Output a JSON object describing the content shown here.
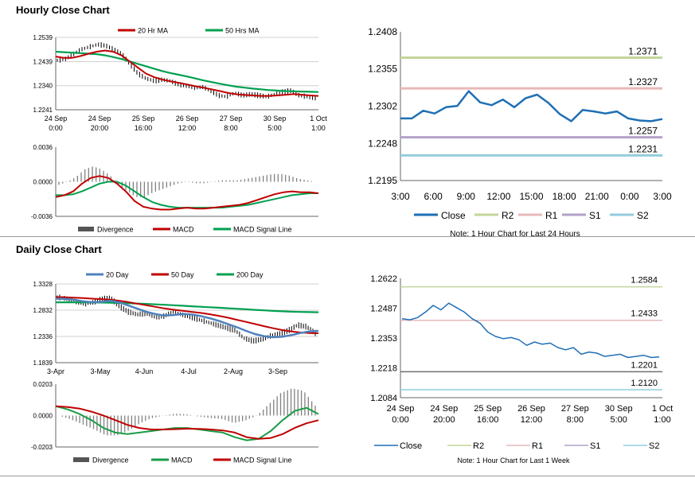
{
  "sections": {
    "hourly_title": "Hourly Close Chart",
    "daily_title": "Daily Close Chart"
  },
  "colors": {
    "close": "#1f6fb5",
    "r2": "#c3d69b",
    "r1": "#e6b9b8",
    "s1": "#b3a2c7",
    "s2": "#93cddd",
    "red": "#c00000",
    "green": "#00a050",
    "blue": "#4f81bd",
    "bar": "#808080",
    "macd_daily_green": "#1a9b45"
  },
  "chart_data": [
    {
      "id": "hourly_price",
      "type": "line",
      "title": "Hourly Close Chart",
      "legend": [
        "20 Hr MA",
        "50 Hrs MA"
      ],
      "y_ticks": [
        "1.2539",
        "1.2439",
        "1.2340",
        "1.2241"
      ],
      "ylim": [
        1.2241,
        1.2539
      ],
      "x_ticks": [
        [
          "24 Sep",
          "0:00"
        ],
        [
          "24 Sep",
          "20:00"
        ],
        [
          "25 Sep",
          "16:00"
        ],
        [
          "26 Sep",
          "12:00"
        ],
        [
          "27 Sep",
          "8:00"
        ],
        [
          "30 Sep",
          "5:00"
        ],
        [
          "1 Oct",
          "1:00"
        ]
      ],
      "close": [
        1.2445,
        1.245,
        1.247,
        1.249,
        1.25,
        1.251,
        1.2505,
        1.249,
        1.247,
        1.243,
        1.239,
        1.237,
        1.236,
        1.2365,
        1.236,
        1.2345,
        1.234,
        1.233,
        1.2335,
        1.232,
        1.23,
        1.2295,
        1.231,
        1.23,
        1.2305,
        1.23,
        1.2295,
        1.2305,
        1.2315,
        1.232,
        1.23,
        1.2295,
        1.229
      ],
      "ma20": [
        1.246,
        1.2455,
        1.2455,
        1.2462,
        1.2472,
        1.248,
        1.2485,
        1.248,
        1.2465,
        1.244,
        1.2415,
        1.239,
        1.2375,
        1.2365,
        1.2358,
        1.2352,
        1.2345,
        1.2338,
        1.2332,
        1.2325,
        1.2318,
        1.231,
        1.2305,
        1.2302,
        1.23,
        1.2298,
        1.2298,
        1.23,
        1.2303,
        1.2306,
        1.2303,
        1.23,
        1.2298
      ],
      "ma50": [
        1.248,
        1.2478,
        1.2476,
        1.2474,
        1.2472,
        1.247,
        1.2465,
        1.2458,
        1.245,
        1.244,
        1.243,
        1.242,
        1.241,
        1.24,
        1.2392,
        1.2385,
        1.2378,
        1.237,
        1.2362,
        1.2355,
        1.2348,
        1.2342,
        1.2336,
        1.2332,
        1.2328,
        1.2325,
        1.2322,
        1.232,
        1.2318,
        1.2317,
        1.2316,
        1.2315,
        1.2314
      ]
    },
    {
      "id": "hourly_macd",
      "type": "line",
      "legend": [
        "Divergence",
        "MACD",
        "MACD Signal Line"
      ],
      "y_ticks": [
        "0.0036",
        "0.0000",
        "-0.0036"
      ],
      "ylim": [
        -0.0036,
        0.0036
      ],
      "macd": [
        -0.0016,
        -0.0014,
        -0.001,
        -0.0002,
        0.0004,
        0.0006,
        0.0004,
        -0.0002,
        -0.001,
        -0.002,
        -0.0026,
        -0.0028,
        -0.0029,
        -0.0029,
        -0.0028,
        -0.0027,
        -0.0028,
        -0.0028,
        -0.0027,
        -0.0026,
        -0.0025,
        -0.0024,
        -0.0022,
        -0.0019,
        -0.0016,
        -0.0013,
        -0.0011,
        -0.001,
        -0.0011,
        -0.0011,
        -0.0012
      ],
      "signal": [
        -0.0014,
        -0.0014,
        -0.0013,
        -0.001,
        -0.0006,
        -0.0002,
        0.0,
        0.0,
        -0.0004,
        -0.001,
        -0.0016,
        -0.0021,
        -0.0024,
        -0.0026,
        -0.0027,
        -0.0027,
        -0.0027,
        -0.0027,
        -0.0027,
        -0.0027,
        -0.0026,
        -0.0025,
        -0.0024,
        -0.0022,
        -0.002,
        -0.0018,
        -0.0016,
        -0.0014,
        -0.0013,
        -0.0012,
        -0.0012
      ]
    },
    {
      "id": "hourly_24h",
      "type": "line",
      "note": "Note: 1 Hour Chart for Last 24 Hours",
      "y_ticks": [
        "1.2408",
        "1.2355",
        "1.2302",
        "1.2248",
        "1.2195"
      ],
      "ylim": [
        1.2195,
        1.2408
      ],
      "x_ticks": [
        "3:00",
        "6:00",
        "9:00",
        "12:00",
        "15:00",
        "18:00",
        "21:00",
        "0:00",
        "3:00"
      ],
      "legend": [
        "Close",
        "R2",
        "R1",
        "S1",
        "S2"
      ],
      "levels": {
        "R2": 1.2371,
        "R1": 1.2327,
        "S1": 1.2257,
        "S2": 1.2231
      },
      "level_labels": {
        "R2": "1.2371",
        "R1": "1.2327",
        "S1": "1.2257",
        "S2": "1.2231"
      },
      "close": [
        1.2284,
        1.2284,
        1.2295,
        1.2291,
        1.23,
        1.2302,
        1.2323,
        1.2307,
        1.2303,
        1.2311,
        1.23,
        1.2313,
        1.2318,
        1.2306,
        1.229,
        1.228,
        1.2296,
        1.2294,
        1.2291,
        1.2294,
        1.2284,
        1.2281,
        1.228,
        1.2283
      ]
    },
    {
      "id": "daily_price",
      "type": "line",
      "title": "Daily Close Chart",
      "legend": [
        "20 Day",
        "50 Day",
        "200 Day"
      ],
      "y_ticks": [
        "1.3328",
        "1.2832",
        "1.2336",
        "1.1839"
      ],
      "ylim": [
        1.1839,
        1.3328
      ],
      "x_ticks": [
        "3-Apr",
        "3-May",
        "4-Jun",
        "4-Jul",
        "2-Aug",
        "3-Sep"
      ],
      "close": [
        1.308,
        1.305,
        1.3,
        1.295,
        1.298,
        1.305,
        1.306,
        1.29,
        1.28,
        1.275,
        1.278,
        1.27,
        1.272,
        1.28,
        1.275,
        1.27,
        1.265,
        1.26,
        1.255,
        1.25,
        1.245,
        1.23,
        1.225,
        1.228,
        1.235,
        1.238,
        1.245,
        1.255,
        1.252,
        1.24
      ],
      "ma20": [
        1.305,
        1.3045,
        1.303,
        1.3,
        1.298,
        1.299,
        1.301,
        1.298,
        1.292,
        1.286,
        1.28,
        1.276,
        1.273,
        1.274,
        1.276,
        1.275,
        1.272,
        1.268,
        1.263,
        1.257,
        1.251,
        1.244,
        1.238,
        1.234,
        1.232,
        1.233,
        1.236,
        1.24,
        1.243,
        1.244
      ],
      "ma50": [
        1.308,
        1.3075,
        1.3068,
        1.306,
        1.305,
        1.304,
        1.303,
        1.301,
        1.2985,
        1.2955,
        1.2925,
        1.2895,
        1.2865,
        1.284,
        1.282,
        1.28,
        1.278,
        1.2755,
        1.2725,
        1.269,
        1.265,
        1.261,
        1.257,
        1.253,
        1.249,
        1.2455,
        1.243,
        1.241,
        1.24,
        1.2395
      ],
      "ma200": [
        1.298,
        1.298,
        1.298,
        1.2979,
        1.2978,
        1.2976,
        1.2973,
        1.2969,
        1.2963,
        1.2957,
        1.295,
        1.2942,
        1.2934,
        1.2925,
        1.2916,
        1.2906,
        1.2897,
        1.2888,
        1.2878,
        1.2868,
        1.2858,
        1.2848,
        1.2838,
        1.2828,
        1.2818,
        1.281,
        1.2803,
        1.2798,
        1.2795,
        1.2793
      ]
    },
    {
      "id": "daily_macd",
      "type": "line",
      "legend": [
        "Divergence",
        "MACD",
        "MACD Signal Line"
      ],
      "y_ticks": [
        "0.0203",
        "0.0000",
        "-0.0203"
      ],
      "ylim": [
        -0.0203,
        0.0203
      ],
      "macd": [
        0.006,
        0.004,
        0.001,
        -0.003,
        -0.008,
        -0.011,
        -0.012,
        -0.011,
        -0.01,
        -0.009,
        -0.008,
        -0.008,
        -0.009,
        -0.01,
        -0.011,
        -0.014,
        -0.016,
        -0.015,
        -0.01,
        -0.003,
        0.003,
        0.005,
        0.001
      ],
      "signal": [
        0.006,
        0.0055,
        0.0045,
        0.0025,
        0.0,
        -0.003,
        -0.006,
        -0.008,
        -0.009,
        -0.009,
        -0.0088,
        -0.0085,
        -0.0086,
        -0.009,
        -0.0096,
        -0.011,
        -0.014,
        -0.015,
        -0.0145,
        -0.012,
        -0.008,
        -0.005,
        -0.003
      ]
    },
    {
      "id": "daily_week",
      "type": "line",
      "note": "Note: 1 Hour Chart for Last 1 Week",
      "y_ticks": [
        "1.2622",
        "1.2487",
        "1.2353",
        "1.2218",
        "1.2084"
      ],
      "ylim": [
        1.2084,
        1.2622
      ],
      "x_ticks": [
        [
          "24 Sep",
          "0:00"
        ],
        [
          "24 Sep",
          "20:00"
        ],
        [
          "25 Sep",
          "16:00"
        ],
        [
          "26 Sep",
          "12:00"
        ],
        [
          "27 Sep",
          "8:00"
        ],
        [
          "30 Sep",
          "5:00"
        ],
        [
          "1 Oct",
          "1:00"
        ]
      ],
      "legend": [
        "Close",
        "R2",
        "R1",
        "S1",
        "S2"
      ],
      "levels": {
        "R2": 1.2584,
        "R1": 1.2433,
        "S1": 1.2201,
        "S2": 1.212
      },
      "level_labels": {
        "R2": "1.2584",
        "R1": "1.2433",
        "S1": "1.2201",
        "S2": "1.2120"
      },
      "close": [
        1.244,
        1.2435,
        1.2445,
        1.247,
        1.25,
        1.248,
        1.251,
        1.249,
        1.247,
        1.244,
        1.242,
        1.238,
        1.236,
        1.235,
        1.2355,
        1.2345,
        1.232,
        1.2335,
        1.2325,
        1.233,
        1.231,
        1.23,
        1.231,
        1.228,
        1.229,
        1.2285,
        1.227,
        1.2275,
        1.228,
        1.2265,
        1.227,
        1.2275,
        1.2265,
        1.2268
      ]
    }
  ]
}
